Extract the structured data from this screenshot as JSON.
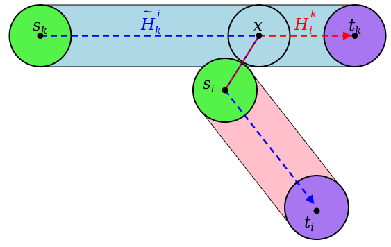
{
  "colors": {
    "top_capsule": "#add8e6",
    "bottom_capsule": "#ffc0cb",
    "source_node": "#55f24a",
    "target_node": "#a776f0",
    "outline": "#000000",
    "blue_path": "#0000ff",
    "red_path": "#ff0000"
  },
  "nodes": {
    "s_k": {
      "base": "s",
      "sub": "k"
    },
    "x": {
      "base": "x"
    },
    "t_k": {
      "base": "t",
      "sub": "k"
    },
    "s_i": {
      "base": "s",
      "sub": "i"
    },
    "t_i": {
      "base": "t",
      "sub": "i"
    }
  },
  "labels": {
    "h_tilde": {
      "base": "H",
      "accent": "~",
      "sup": "i",
      "sub": "k"
    },
    "h": {
      "base": "H",
      "sup": "k",
      "sub": "i"
    }
  }
}
